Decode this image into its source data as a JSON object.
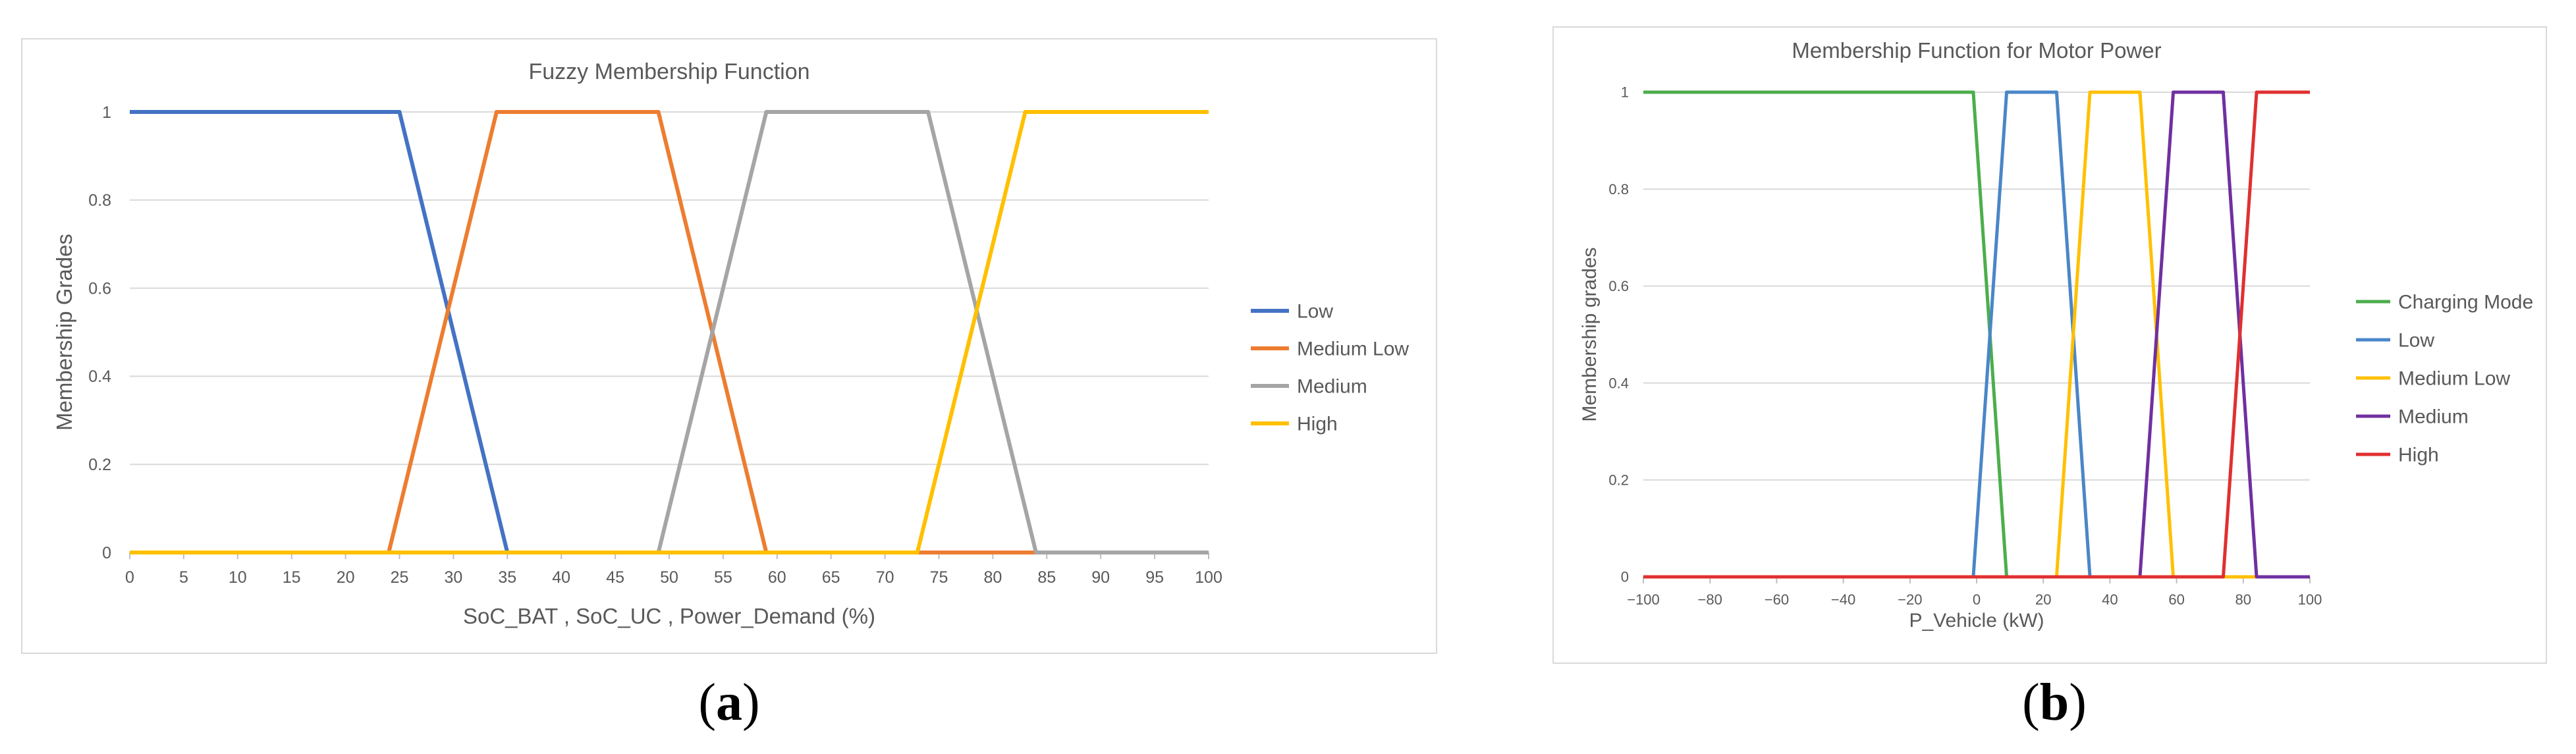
{
  "chart_data": [
    {
      "type": "line",
      "title": "Fuzzy Membership Function",
      "xlabel": "SoC_BAT , SoC_UC , Power_Demand (%)",
      "ylabel": "Membership Grades",
      "xlim": [
        0,
        100
      ],
      "ylim": [
        0,
        1
      ],
      "xticks": [
        "0",
        "5",
        "10",
        "15",
        "20",
        "25",
        "30",
        "35",
        "40",
        "45",
        "50",
        "55",
        "60",
        "65",
        "70",
        "75",
        "80",
        "85",
        "90",
        "95",
        "100"
      ],
      "yticks": [
        "0",
        "0.2",
        "0.4",
        "0.6",
        "0.8",
        "1"
      ],
      "grid": true,
      "legend_position": "right",
      "series": [
        {
          "name": "Low",
          "color": "#4472c4",
          "x": [
            0,
            25,
            35,
            100
          ],
          "y": [
            1,
            1,
            0,
            0
          ]
        },
        {
          "name": "Medium Low",
          "color": "#ed7d31",
          "x": [
            0,
            24,
            34,
            49,
            59,
            100
          ],
          "y": [
            0,
            0,
            1,
            1,
            0,
            0
          ]
        },
        {
          "name": "Medium",
          "color": "#a5a5a5",
          "x": [
            0,
            49,
            59,
            74,
            84,
            100
          ],
          "y": [
            0,
            0,
            1,
            1,
            0,
            0
          ]
        },
        {
          "name": "High",
          "color": "#ffc000",
          "x": [
            0,
            73,
            83,
            100
          ],
          "y": [
            0,
            0,
            1,
            1
          ]
        }
      ]
    },
    {
      "type": "line",
      "title": "Membership Function for Motor Power",
      "xlabel": "P_Vehicle (kW)",
      "ylabel": "Membership grades",
      "xlim": [
        -100,
        100
      ],
      "ylim": [
        0,
        1
      ],
      "xticks": [
        "−100",
        "−80",
        "−60",
        "−40",
        "−20",
        "0",
        "20",
        "40",
        "60",
        "80",
        "100"
      ],
      "yticks": [
        "0",
        "0.2",
        "0.4",
        "0.6",
        "0.8",
        "1"
      ],
      "grid": true,
      "legend_position": "right",
      "series": [
        {
          "name": "Charging Mode",
          "color": "#4cae4c",
          "x": [
            -100,
            -1,
            9,
            100
          ],
          "y": [
            1,
            1,
            0,
            0
          ]
        },
        {
          "name": "Low",
          "color": "#4a86c8",
          "x": [
            -100,
            -1,
            9,
            24,
            34,
            100
          ],
          "y": [
            0,
            0,
            1,
            1,
            0,
            0
          ]
        },
        {
          "name": "Medium Low",
          "color": "#ffc000",
          "x": [
            -100,
            24,
            34,
            49,
            59,
            100
          ],
          "y": [
            0,
            0,
            1,
            1,
            0,
            0
          ]
        },
        {
          "name": "Medium",
          "color": "#7030a0",
          "x": [
            -100,
            49,
            59,
            74,
            84,
            100
          ],
          "y": [
            0,
            0,
            1,
            1,
            0,
            0
          ]
        },
        {
          "name": "High",
          "color": "#e03030",
          "x": [
            -100,
            74,
            84,
            100
          ],
          "y": [
            0,
            0,
            1,
            1
          ]
        }
      ]
    }
  ],
  "captions": {
    "a": "a",
    "b": "b"
  }
}
